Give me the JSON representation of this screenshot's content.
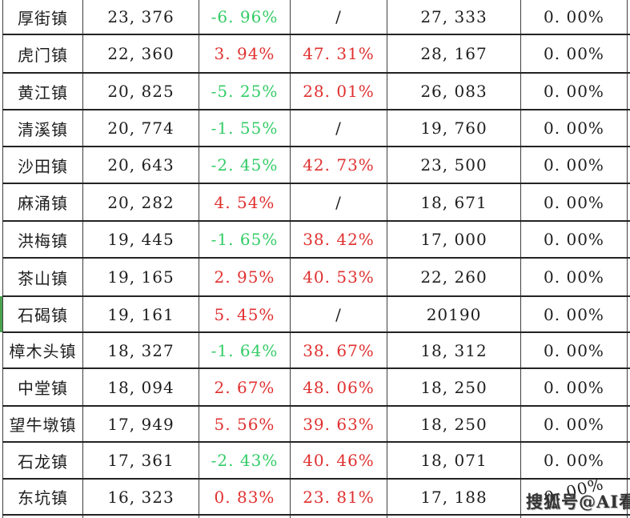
{
  "colors": {
    "positive_red": "#e03030",
    "negative_green": "#33cc66",
    "text_black": "#1e1e1e",
    "row_marker_green": "#4aa14f",
    "border": "#2a2a2a",
    "background": "#ffffff"
  },
  "watermark": {
    "text": "搜狐号@AI看房"
  },
  "table": {
    "rows": [
      {
        "town": "厚街镇",
        "values": [
          {
            "text": "23, 376",
            "color": "black"
          },
          {
            "text": "-6. 96%",
            "color": "green"
          },
          {
            "text": "/",
            "color": "black"
          },
          {
            "text": "27, 333",
            "color": "black"
          },
          {
            "text": "0. 00%",
            "color": "black"
          }
        ]
      },
      {
        "town": "虎门镇",
        "values": [
          {
            "text": "22, 360",
            "color": "black"
          },
          {
            "text": "3. 94%",
            "color": "red"
          },
          {
            "text": "47. 31%",
            "color": "red"
          },
          {
            "text": "28, 167",
            "color": "black"
          },
          {
            "text": "0. 00%",
            "color": "black"
          }
        ]
      },
      {
        "town": "黄江镇",
        "values": [
          {
            "text": "20, 825",
            "color": "black"
          },
          {
            "text": "-5. 25%",
            "color": "green"
          },
          {
            "text": "28. 01%",
            "color": "red"
          },
          {
            "text": "26, 083",
            "color": "black"
          },
          {
            "text": "0. 00%",
            "color": "black"
          }
        ]
      },
      {
        "town": "清溪镇",
        "values": [
          {
            "text": "20, 774",
            "color": "black"
          },
          {
            "text": "-1. 55%",
            "color": "green"
          },
          {
            "text": "/",
            "color": "black"
          },
          {
            "text": "19, 760",
            "color": "black"
          },
          {
            "text": "0. 00%",
            "color": "black"
          }
        ]
      },
      {
        "town": "沙田镇",
        "values": [
          {
            "text": "20, 643",
            "color": "black"
          },
          {
            "text": "-2. 45%",
            "color": "green"
          },
          {
            "text": "42. 73%",
            "color": "red"
          },
          {
            "text": "23, 500",
            "color": "black"
          },
          {
            "text": "0. 00%",
            "color": "black"
          }
        ]
      },
      {
        "town": "麻涌镇",
        "values": [
          {
            "text": "20, 282",
            "color": "black"
          },
          {
            "text": "4. 54%",
            "color": "red"
          },
          {
            "text": "/",
            "color": "black"
          },
          {
            "text": "18, 671",
            "color": "black"
          },
          {
            "text": "0. 00%",
            "color": "black"
          }
        ]
      },
      {
        "town": "洪梅镇",
        "values": [
          {
            "text": "19, 445",
            "color": "black"
          },
          {
            "text": "-1. 65%",
            "color": "green"
          },
          {
            "text": "38. 42%",
            "color": "red"
          },
          {
            "text": "17, 000",
            "color": "black"
          },
          {
            "text": "0. 00%",
            "color": "black"
          }
        ]
      },
      {
        "town": "茶山镇",
        "values": [
          {
            "text": "19, 165",
            "color": "black"
          },
          {
            "text": "2. 95%",
            "color": "red"
          },
          {
            "text": "40. 53%",
            "color": "red"
          },
          {
            "text": "22, 260",
            "color": "black"
          },
          {
            "text": "0. 00%",
            "color": "black"
          }
        ]
      },
      {
        "town": "石碣镇",
        "marker": true,
        "values": [
          {
            "text": "19, 161",
            "color": "black"
          },
          {
            "text": "5. 45%",
            "color": "red"
          },
          {
            "text": "/",
            "color": "black"
          },
          {
            "text": "20190",
            "color": "black"
          },
          {
            "text": "0. 00%",
            "color": "black"
          }
        ]
      },
      {
        "town": "樟木头镇",
        "values": [
          {
            "text": "18, 327",
            "color": "black"
          },
          {
            "text": "-1. 64%",
            "color": "green"
          },
          {
            "text": "38. 67%",
            "color": "red"
          },
          {
            "text": "18, 312",
            "color": "black"
          },
          {
            "text": "0. 00%",
            "color": "black"
          }
        ]
      },
      {
        "town": "中堂镇",
        "values": [
          {
            "text": "18, 094",
            "color": "black"
          },
          {
            "text": "2. 67%",
            "color": "red"
          },
          {
            "text": "48. 06%",
            "color": "red"
          },
          {
            "text": "18, 250",
            "color": "black"
          },
          {
            "text": "0. 00%",
            "color": "black"
          }
        ]
      },
      {
        "town": "望牛墩镇",
        "values": [
          {
            "text": "17, 949",
            "color": "black"
          },
          {
            "text": "5. 56%",
            "color": "red"
          },
          {
            "text": "39. 63%",
            "color": "red"
          },
          {
            "text": "18, 250",
            "color": "black"
          },
          {
            "text": "0. 00%",
            "color": "black"
          }
        ]
      },
      {
        "town": "石龙镇",
        "values": [
          {
            "text": "17, 361",
            "color": "black"
          },
          {
            "text": "-2. 43%",
            "color": "green"
          },
          {
            "text": "40. 46%",
            "color": "red"
          },
          {
            "text": "18, 071",
            "color": "black"
          },
          {
            "text": "0. 00%",
            "color": "black"
          }
        ]
      },
      {
        "town": "东坑镇",
        "values": [
          {
            "text": "16, 323",
            "color": "black"
          },
          {
            "text": "0. 83%",
            "color": "red"
          },
          {
            "text": "23. 81%",
            "color": "red"
          },
          {
            "text": "17, 188",
            "color": "black"
          },
          {
            "text": "0. 00%",
            "color": "black",
            "tilted": true
          }
        ]
      }
    ]
  },
  "chart_data": {
    "type": "table",
    "rows": [
      [
        "厚街镇",
        "23,376",
        "-6.96%",
        "/",
        "27,333",
        "0.00%"
      ],
      [
        "虎门镇",
        "22,360",
        "3.94%",
        "47.31%",
        "28,167",
        "0.00%"
      ],
      [
        "黄江镇",
        "20,825",
        "-5.25%",
        "28.01%",
        "26,083",
        "0.00%"
      ],
      [
        "清溪镇",
        "20,774",
        "-1.55%",
        "/",
        "19,760",
        "0.00%"
      ],
      [
        "沙田镇",
        "20,643",
        "-2.45%",
        "42.73%",
        "23,500",
        "0.00%"
      ],
      [
        "麻涌镇",
        "20,282",
        "4.54%",
        "/",
        "18,671",
        "0.00%"
      ],
      [
        "洪梅镇",
        "19,445",
        "-1.65%",
        "38.42%",
        "17,000",
        "0.00%"
      ],
      [
        "茶山镇",
        "19,165",
        "2.95%",
        "40.53%",
        "22,260",
        "0.00%"
      ],
      [
        "石碣镇",
        "19,161",
        "5.45%",
        "/",
        "20190",
        "0.00%"
      ],
      [
        "樟木头镇",
        "18,327",
        "-1.64%",
        "38.67%",
        "18,312",
        "0.00%"
      ],
      [
        "中堂镇",
        "18,094",
        "2.67%",
        "48.06%",
        "18,250",
        "0.00%"
      ],
      [
        "望牛墩镇",
        "17,949",
        "5.56%",
        "39.63%",
        "18,250",
        "0.00%"
      ],
      [
        "石龙镇",
        "17,361",
        "-2.43%",
        "40.46%",
        "18,071",
        "0.00%"
      ],
      [
        "东坑镇",
        "16,323",
        "0.83%",
        "23.81%",
        "17,188",
        "0.00%"
      ]
    ],
    "notes": "green = negative change, red = positive change, '/' = no data; row 石碣镇 has a green left-edge marker"
  }
}
